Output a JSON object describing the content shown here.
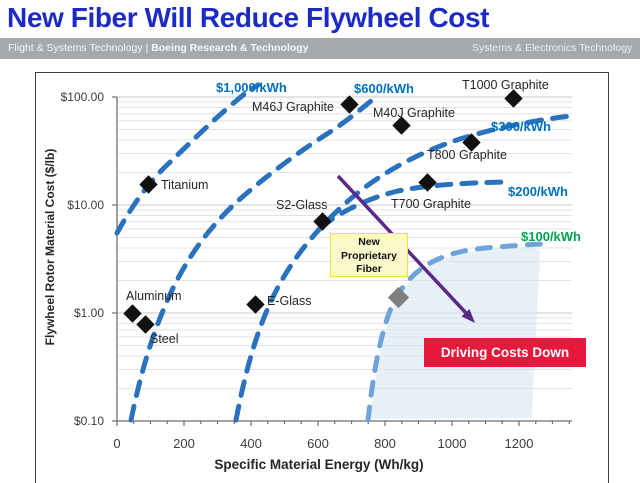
{
  "slide": {
    "title": "New Fiber Will Reduce Flywheel Cost"
  },
  "header_bar": {
    "left_regular": "Flight & Systems Technology | ",
    "left_bold": "Boeing Research & Technology",
    "right": "Systems & Electronics Technology"
  },
  "chart_data": {
    "type": "scatter",
    "xlabel": "Specific Material Energy (Wh/kg)",
    "ylabel": "Flywheel Rotor Material  Cost ($/lb)",
    "x_scale": "linear",
    "y_scale": "log",
    "xlim": [
      0,
      1360
    ],
    "ylim": [
      0.1,
      150
    ],
    "x_ticks": [
      0,
      200,
      400,
      600,
      800,
      1000,
      1200
    ],
    "y_ticks": [
      "$100.00",
      "$10.00",
      "$1.00",
      "$0.10"
    ],
    "grid": "major and log-minor horizontal gridlines",
    "points": [
      {
        "label": "Steel",
        "x": 86,
        "y": 0.78
      },
      {
        "label": "Aluminum",
        "x": 45,
        "y": 1.0
      },
      {
        "label": "Titanium",
        "x": 95,
        "y": 15.5
      },
      {
        "label": "E-Glass",
        "x": 414,
        "y": 1.2
      },
      {
        "label": "S2-Glass",
        "x": 614,
        "y": 7.0
      },
      {
        "label": "M46J Graphite",
        "x": 695,
        "y": 86
      },
      {
        "label": "M40J Graphite",
        "x": 850,
        "y": 54
      },
      {
        "label": "T800 Graphite",
        "x": 1059,
        "y": 38
      },
      {
        "label": "T700 Graphite",
        "x": 928,
        "y": 16
      },
      {
        "label": "T1000 Graphite",
        "x": 1184,
        "y": 96
      },
      {
        "label": "New Proprietary Fiber",
        "x": 841,
        "y": 1.4,
        "marker_color": "#7F7F7F"
      }
    ],
    "contour_labels": [
      {
        "text": "$1,000/kWh",
        "color": "#0070C0"
      },
      {
        "text": "$600/kWh",
        "color": "#0070C0"
      },
      {
        "text": "$300/kWh",
        "color": "#0070C0"
      },
      {
        "text": "$200/kWh",
        "color": "#0070C0"
      },
      {
        "text": "$100/kWh",
        "color": "#00A551"
      }
    ],
    "curve_color": "#2A72BE",
    "light_curve_color": "#6FA3D9",
    "annotations": {
      "note_lines": [
        "New",
        "Proprietary",
        "Fiber"
      ],
      "callout": "Driving Costs Down",
      "arrow_color": "#5B2A86"
    }
  }
}
